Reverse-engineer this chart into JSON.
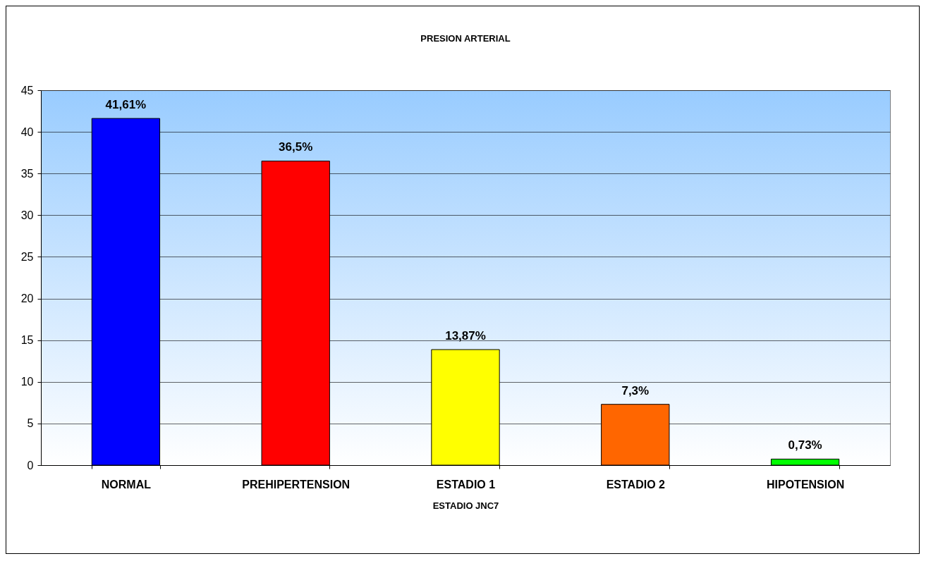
{
  "chart_data": {
    "type": "bar",
    "title": "PRESION ARTERIAL",
    "xlabel": "ESTADIO JNC7",
    "categories": [
      "NORMAL",
      "PREHIPERTENSION",
      "ESTADIO 1",
      "ESTADIO 2",
      "HIPOTENSION"
    ],
    "values": [
      41.61,
      36.5,
      13.87,
      7.3,
      0.73
    ],
    "value_labels": [
      "41,61%",
      "36,5%",
      "13,87%",
      "7,3%",
      "0,73%"
    ],
    "colors": [
      "#0000ff",
      "#ff0000",
      "#ffff00",
      "#ff6600",
      "#00ff00"
    ],
    "ylim": [
      0,
      45
    ],
    "yticks": [
      0,
      5,
      10,
      15,
      20,
      25,
      30,
      35,
      40,
      45
    ],
    "grid": "y"
  }
}
